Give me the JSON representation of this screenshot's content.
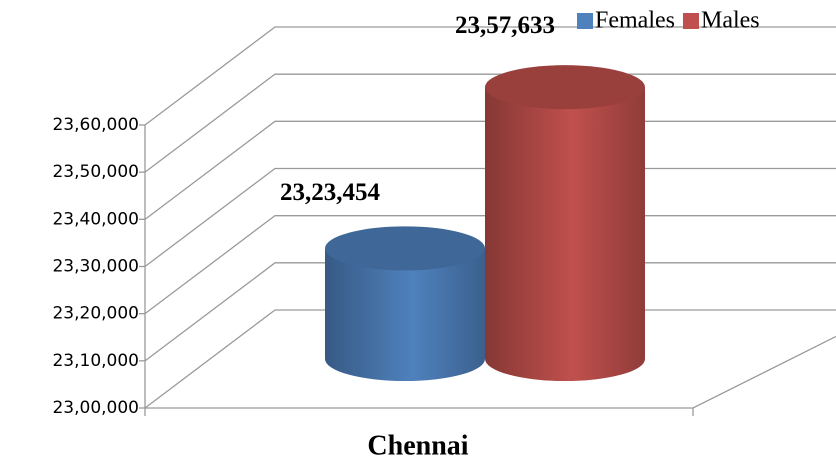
{
  "chart_data": {
    "type": "bar3d",
    "categories": [
      "Chennai"
    ],
    "series": [
      {
        "name": "Females",
        "color": "#4f81bd",
        "values": [
          2323454
        ],
        "value_labels": [
          "23,23,454"
        ]
      },
      {
        "name": "Males",
        "color": "#c0504d",
        "values": [
          2357633
        ],
        "value_labels": [
          "23,57,633"
        ]
      }
    ],
    "ylim": [
      2300000,
      2360000
    ],
    "yticks": [
      {
        "value": 2300000,
        "label": "23,00,000"
      },
      {
        "value": 2310000,
        "label": "23,10,000"
      },
      {
        "value": 2320000,
        "label": "23,20,000"
      },
      {
        "value": 2330000,
        "label": "23,30,000"
      },
      {
        "value": 2340000,
        "label": "23,40,000"
      },
      {
        "value": 2350000,
        "label": "23,50,000"
      },
      {
        "value": 2360000,
        "label": "23,60,000"
      }
    ],
    "grid": true,
    "legend": "top-right"
  }
}
